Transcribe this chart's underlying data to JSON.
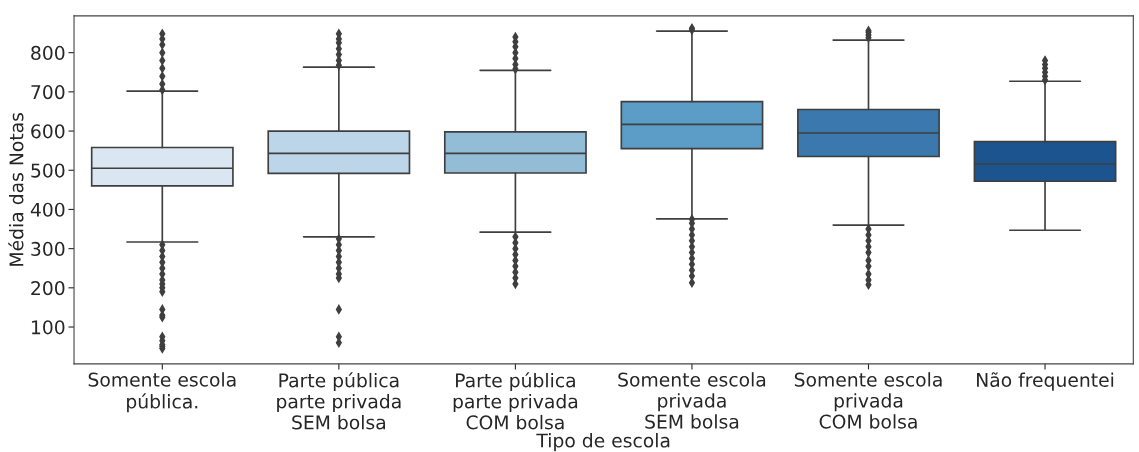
{
  "chart_data": {
    "type": "box",
    "xlabel": "Tipo de escola",
    "ylabel": "Média das Notas",
    "categories": [
      "Somente escola\npública.",
      "Parte pública\nparte privada\nSEM bolsa",
      "Parte pública\nparte privada\nCOM bolsa",
      "Somente escola\nprivada\nSEM bolsa",
      "Somente escola\nprivada\nCOM bolsa",
      "Não frequentei"
    ],
    "colors": [
      "#dbe6f3",
      "#bdd5e9",
      "#93bcd7",
      "#5b9dc6",
      "#3a78ad",
      "#1c548f"
    ],
    "boxes": [
      {
        "low": 317,
        "q1": 460,
        "median": 505,
        "q3": 558,
        "high": 702,
        "outliers": [
          45,
          50,
          55,
          65,
          75,
          125,
          130,
          145,
          190,
          200,
          210,
          220,
          235,
          250,
          265,
          280,
          295,
          310,
          705,
          720,
          740,
          760,
          780,
          800,
          820,
          835,
          848
        ]
      },
      {
        "low": 330,
        "q1": 492,
        "median": 543,
        "q3": 600,
        "high": 763,
        "outliers": [
          60,
          75,
          145,
          225,
          235,
          250,
          265,
          280,
          295,
          310,
          325,
          768,
          780,
          795,
          810,
          825,
          835,
          848
        ]
      },
      {
        "low": 342,
        "q1": 493,
        "median": 543,
        "q3": 598,
        "high": 755,
        "outliers": [
          210,
          225,
          240,
          255,
          270,
          285,
          300,
          315,
          330,
          758,
          770,
          785,
          800,
          815,
          828,
          840
        ]
      },
      {
        "low": 376,
        "q1": 555,
        "median": 617,
        "q3": 675,
        "high": 855,
        "outliers": [
          213,
          230,
          245,
          260,
          275,
          290,
          305,
          320,
          335,
          350,
          365,
          375,
          858,
          862
        ]
      },
      {
        "low": 360,
        "q1": 535,
        "median": 595,
        "q3": 655,
        "high": 832,
        "outliers": [
          208,
          220,
          235,
          255,
          270,
          290,
          305,
          320,
          335,
          350,
          838,
          845,
          852,
          856
        ]
      },
      {
        "low": 347,
        "q1": 472,
        "median": 516,
        "q3": 573,
        "high": 727,
        "outliers": [
          730,
          740,
          750,
          760,
          770,
          780
        ]
      }
    ],
    "marker": "diamond",
    "grid": false,
    "legend": false,
    "ylim": [
      6,
      894
    ],
    "yticks": [
      100,
      200,
      300,
      400,
      500,
      600,
      700,
      800
    ]
  }
}
